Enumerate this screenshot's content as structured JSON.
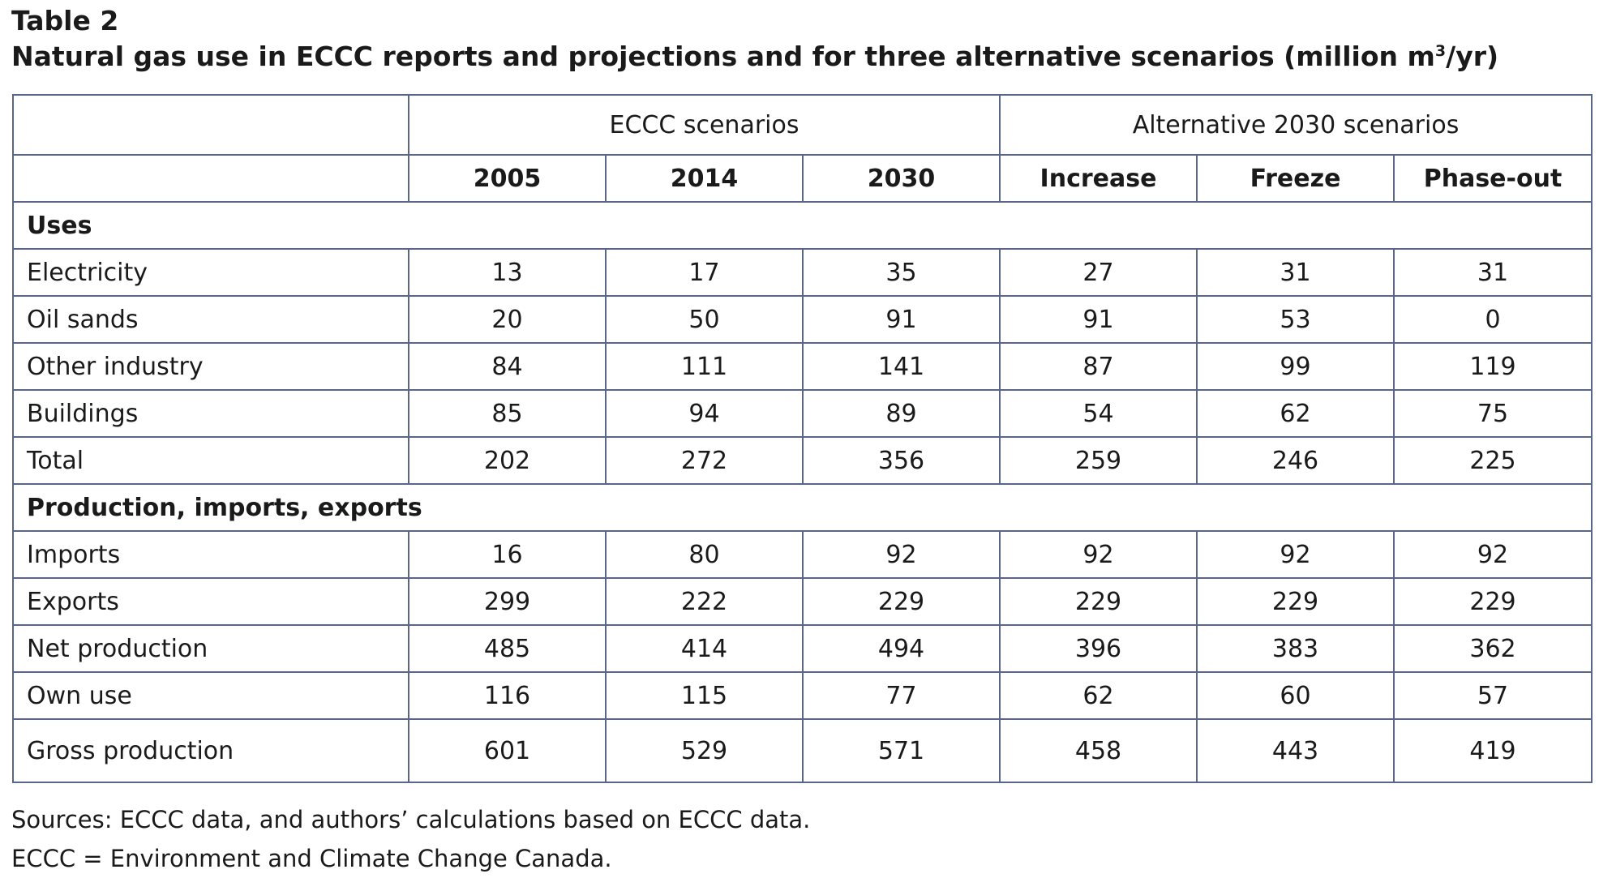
{
  "table_label": "Table 2",
  "title_main": "Natural gas use in ECCC reports and projections and for three alternative scenarios (million m",
  "title_sup": "3",
  "title_end": "/yr)",
  "group_headers": [
    "ECCC scenarios",
    "Alternative 2030 scenarios"
  ],
  "columns": [
    "2005",
    "2014",
    "2030",
    "Increase",
    "Freeze",
    "Phase-out"
  ],
  "sections": [
    {
      "heading": "Uses",
      "rows": [
        {
          "label": "Electricity",
          "values": [
            "13",
            "17",
            "35",
            "27",
            "31",
            "31"
          ]
        },
        {
          "label": "Oil sands",
          "values": [
            "20",
            "50",
            "91",
            "91",
            "53",
            "0"
          ]
        },
        {
          "label": "Other industry",
          "values": [
            "84",
            "111",
            "141",
            "87",
            "99",
            "119"
          ]
        },
        {
          "label": "Buildings",
          "values": [
            "85",
            "94",
            "89",
            "54",
            "62",
            "75"
          ]
        },
        {
          "label": "Total",
          "values": [
            "202",
            "272",
            "356",
            "259",
            "246",
            "225"
          ]
        }
      ]
    },
    {
      "heading": "Production, imports, exports",
      "rows": [
        {
          "label": "Imports",
          "values": [
            "16",
            "80",
            "92",
            "92",
            "92",
            "92"
          ]
        },
        {
          "label": "Exports",
          "values": [
            "299",
            "222",
            "229",
            "229",
            "229",
            "229"
          ]
        },
        {
          "label": "Net production",
          "values": [
            "485",
            "414",
            "494",
            "396",
            "383",
            "362"
          ]
        },
        {
          "label": "Own use",
          "values": [
            "116",
            "115",
            "77",
            "62",
            "60",
            "57"
          ]
        },
        {
          "label": "Gross production",
          "values": [
            "601",
            "529",
            "571",
            "458",
            "443",
            "419"
          ]
        }
      ]
    }
  ],
  "footnotes": [
    "Sources: ECCC data, and authors’ calculations based on ECCC data.",
    "ECCC = Environment and Climate Change Canada."
  ],
  "colors": {
    "border": "#5a6685",
    "text": "#1a1a1a"
  }
}
